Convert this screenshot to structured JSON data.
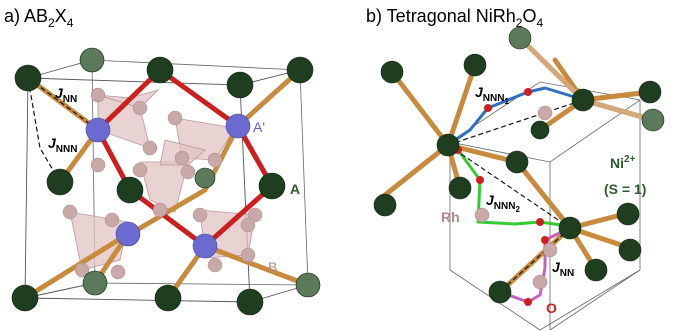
{
  "panel_a": {
    "title_prefix": "a) AB",
    "title_sub1": "2",
    "title_x": "X",
    "title_sub2": "4",
    "label_j": "J",
    "label_jnn_sub": "NN",
    "label_jnnn_sub": "NNN",
    "label_a_prime": "A'",
    "label_a": "A",
    "label_b": "B"
  },
  "panel_b": {
    "title_prefix": "b) Tetragonal NiRh",
    "title_sub1": "2",
    "title_o": "O",
    "title_sub2": "4",
    "label_j": "J",
    "label_jnnn1_sub": "NNN",
    "label_jnnn1_subsub": "1",
    "label_jnnn2_sub": "NNN",
    "label_jnnn2_subsub": "2",
    "label_jnn_sub": "NN",
    "label_rh": "Rh",
    "label_o": "O",
    "label_ni": "Ni",
    "label_ni_sup": "2+",
    "label_spin": "(S = 1)"
  },
  "colors": {
    "a_site": "#1f3d1f",
    "a_site_faded": "#5a7a5a",
    "b_site": "#c9a8a8",
    "b_site_blue": "#6a6ad0",
    "bond_orange": "#c88a3c",
    "bond_red": "#cc1f1f",
    "tetra_fill": "#e2c3c3",
    "jnnn1_blue": "#2e6fc0",
    "jnnn2_green": "#33cc33",
    "jnn_magenta": "#c860c0",
    "oxygen_red": "#cc1f1f",
    "label_purple": "#6060c0",
    "label_green": "#2c5a2c",
    "label_rose": "#b08888"
  }
}
